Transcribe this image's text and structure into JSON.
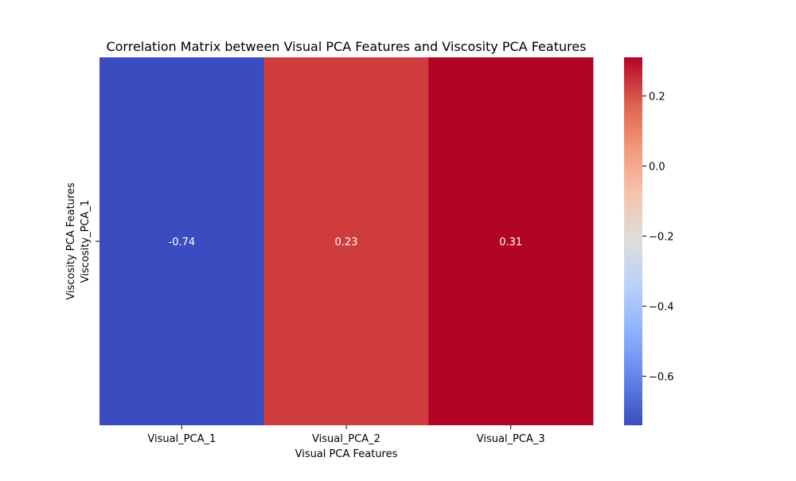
{
  "chart_data": {
    "type": "heatmap",
    "title": "Correlation Matrix between Visual PCA Features and Viscosity PCA Features",
    "xlabel": "Visual PCA Features",
    "ylabel": "Viscosity PCA Features",
    "x_categories": [
      "Visual_PCA_1",
      "Visual_PCA_2",
      "Visual_PCA_3"
    ],
    "y_categories": [
      "Viscosity_PCA_1"
    ],
    "values": [
      [
        -0.74,
        0.23,
        0.31
      ]
    ],
    "cell_labels": [
      [
        "-0.74",
        "0.23",
        "0.31"
      ]
    ],
    "colormap": "coolwarm",
    "colorbar": {
      "vmin": -0.74,
      "vmax": 0.31,
      "ticks": [
        0.2,
        0.0,
        -0.2,
        -0.4,
        -0.6
      ],
      "tick_labels": [
        "0.2",
        "0.0",
        "−0.2",
        "−0.4",
        "−0.6"
      ]
    },
    "colors": {
      "annotation_text": "#ffffff"
    }
  }
}
